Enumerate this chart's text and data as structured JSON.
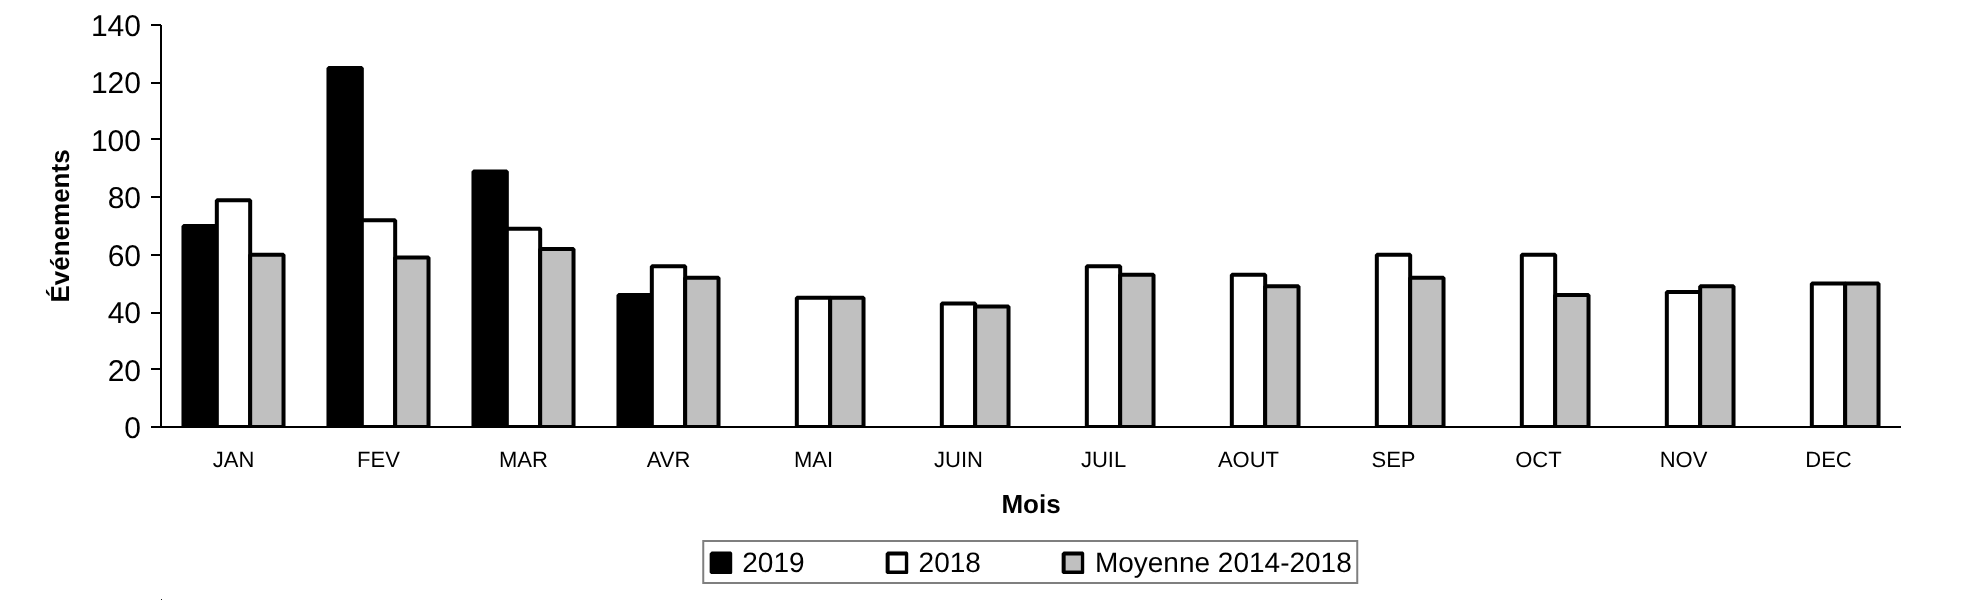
{
  "chart_data": {
    "type": "bar",
    "xlabel": "Mois",
    "ylabel": "Événements",
    "categories": [
      "JAN",
      "FEV",
      "MAR",
      "AVR",
      "MAI",
      "JUIN",
      "JUIL",
      "AOUT",
      "SEP",
      "OCT",
      "NOV",
      "DEC"
    ],
    "series": [
      {
        "name": "2019",
        "color": "#000000",
        "values": [
          70,
          125,
          89,
          46,
          null,
          null,
          null,
          null,
          null,
          null,
          null,
          null
        ]
      },
      {
        "name": "2018",
        "color": "#ffffff",
        "values": [
          79,
          72,
          69,
          56,
          45,
          43,
          56,
          53,
          60,
          60,
          47,
          50
        ]
      },
      {
        "name": "Moyenne 2014-2018",
        "color": "#c0c0c0",
        "values": [
          60,
          59,
          62,
          52,
          45,
          42,
          53,
          49,
          52,
          46,
          49,
          50
        ]
      }
    ],
    "ylim": [
      0,
      140
    ],
    "yticks": [
      0,
      20,
      40,
      60,
      80,
      100,
      120,
      140
    ],
    "grid": false,
    "legend": "bottom"
  }
}
